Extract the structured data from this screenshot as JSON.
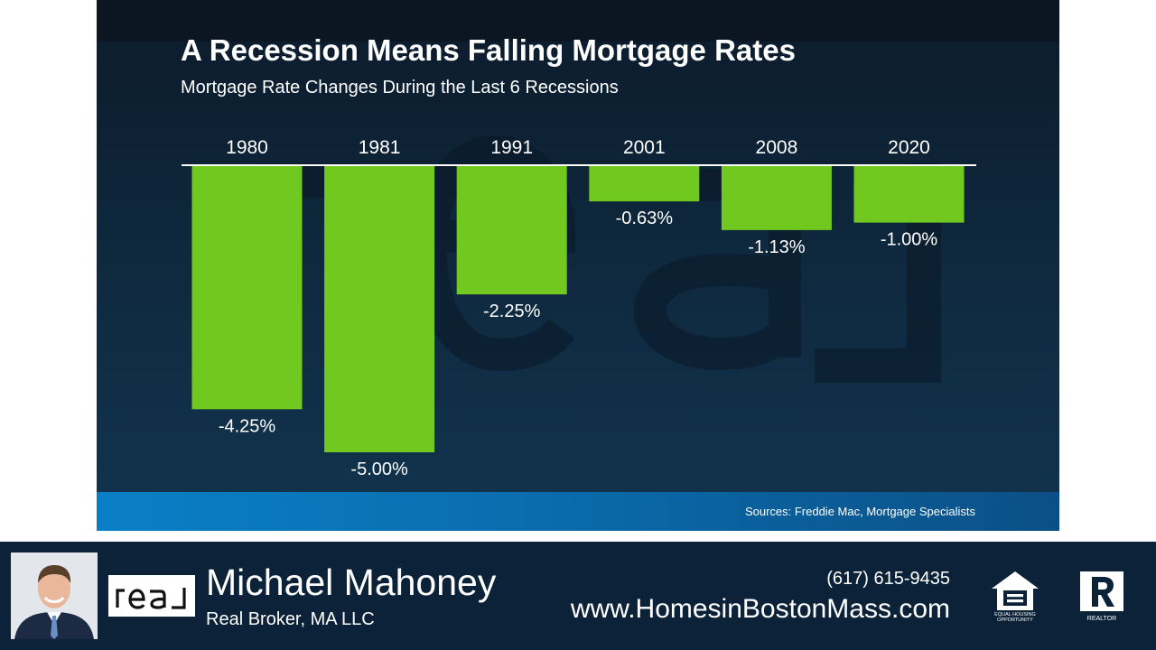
{
  "slide": {
    "title": "A Recession Means Falling Mortgage Rates",
    "subtitle": "Mortgage Rate Changes During the Last 6 Recessions",
    "sources": "Sources: Freddie Mac, Mortgage Specialists",
    "watermark_text": "real"
  },
  "chart_data": {
    "type": "bar",
    "title": "A Recession Means Falling Mortgage Rates",
    "subtitle": "Mortgage Rate Changes During the Last 6 Recessions",
    "categories": [
      "1980",
      "1981",
      "1991",
      "2001",
      "2008",
      "2020"
    ],
    "values": [
      -4.25,
      -5.0,
      -2.25,
      -0.63,
      -1.13,
      -1.0
    ],
    "data_labels": [
      "-4.25%",
      "-5.00%",
      "-2.25%",
      "-0.63%",
      "-1.13%",
      "-1.00%"
    ],
    "unit": "%",
    "ylim": [
      -5.0,
      0
    ],
    "grid": false,
    "legend": "none",
    "bar_color": "#71c91f"
  },
  "footer": {
    "agent_name": "Michael Mahoney",
    "company": "Real Broker, MA LLC",
    "phone": "(617) 615-9435",
    "website": "www.HomesinBostonMass.com",
    "brand_logo_text": "real",
    "eho_text_line1": "EQUAL HOUSING",
    "eho_text_line2": "OPPORTUNITY",
    "realtor_text": "REALTOR",
    "icons": [
      "agent-photo",
      "real-logo",
      "equal-housing-icon",
      "realtor-icon"
    ]
  },
  "colors": {
    "bar": "#71c91f",
    "slide_bg": "#0f2a40",
    "footer_bg": "#0b2238",
    "accent_blue": "#0a7fc7",
    "text": "#ffffff"
  }
}
